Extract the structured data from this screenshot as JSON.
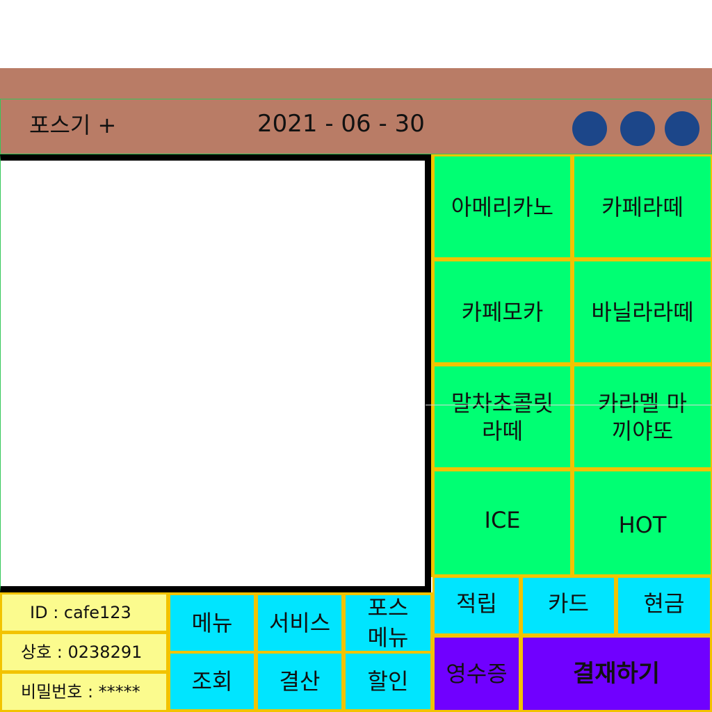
{
  "header": {
    "app_title": "포스기 +",
    "date": "2021 - 06 - 30",
    "window_controls": [
      {
        "icon": "circle-icon",
        "color": "#1c4689"
      },
      {
        "icon": "circle-icon",
        "color": "#1c4689"
      },
      {
        "icon": "circle-icon",
        "color": "#1c4689"
      }
    ]
  },
  "menu": {
    "items": [
      "아메리카노",
      "카페라떼",
      "카페모카",
      "바닐라라떼",
      "말차초콜릿 라떼",
      "카라멜 마끼야또"
    ],
    "ice_label": "ICE",
    "hot_label": "HOT"
  },
  "info": {
    "id": "ID : cafe123",
    "business": "상호 : 0238291",
    "password": "비밀번호 : *****"
  },
  "functions": {
    "menu": "메뉴",
    "service": "서비스",
    "pos_menu": "포스 메뉴",
    "lookup": "조회",
    "settlement": "결산",
    "discount": "할인"
  },
  "payment": {
    "points": "적립",
    "card": "카드",
    "cash": "현금",
    "receipt": "영수증",
    "pay": "결재하기"
  },
  "colors": {
    "title_bar": "#b97c66",
    "menu_button": "#00ff73",
    "grid_border": "#f2c300",
    "function_button": "#00e5ff",
    "info_panel": "#fbfb8e",
    "action_button": "#7000ff",
    "control_dot": "#1c4689"
  }
}
